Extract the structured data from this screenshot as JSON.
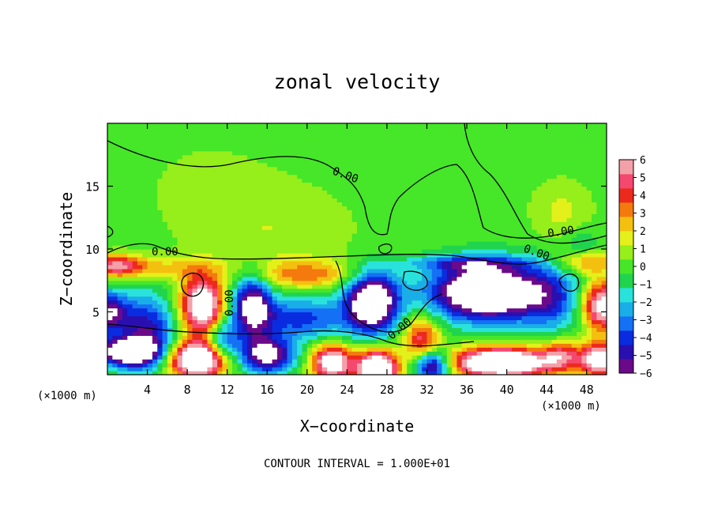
{
  "chart_data": {
    "type": "heatmap",
    "title": "zonal velocity",
    "xlabel": "X−coordinate",
    "ylabel": "Z−coordinate",
    "x_unit": "(×1000 m)",
    "z_unit": "(×1000 m)",
    "xlim": [
      0,
      50
    ],
    "ylim": [
      0,
      20
    ],
    "x_ticks": [
      "4",
      "8",
      "12",
      "16",
      "20",
      "24",
      "28",
      "32",
      "36",
      "40",
      "44",
      "48"
    ],
    "y_ticks": [
      "5",
      "10",
      "15"
    ],
    "colorbar": {
      "min": -6,
      "max": 6,
      "labels": [
        "6",
        "5",
        "4",
        "3",
        "2",
        "1",
        "0",
        "−1",
        "−2",
        "−3",
        "−4",
        "−5",
        "−6"
      ],
      "colors": [
        "#6a0a8a",
        "#2a0fb0",
        "#0a2ce0",
        "#1470f4",
        "#1aaee8",
        "#2ae2dc",
        "#20d44e",
        "#46e628",
        "#96ee1a",
        "#e4f01a",
        "#f4c010",
        "#f47a0e",
        "#ec2a1c",
        "#f4486e",
        "#f4a0a8"
      ]
    },
    "contour_labels": [
      "0.00",
      "0.00",
      "0.00",
      "0.00",
      "0.00",
      "0.00"
    ],
    "footnote": "CONTOUR INTERVAL = 1.000E+01",
    "blobs": [
      {
        "x": 0,
        "z": 5,
        "rx": 2,
        "rz": 1.6,
        "v": -6
      },
      {
        "x": 9.5,
        "z": 5.5,
        "rx": 2.2,
        "rz": 2.4,
        "v": 8
      },
      {
        "x": 14.5,
        "z": 5.5,
        "rx": 2.0,
        "rz": 2.5,
        "v": -7
      },
      {
        "x": 26.5,
        "z": 5.8,
        "rx": 2.6,
        "rz": 2.4,
        "v": -9
      },
      {
        "x": 38,
        "z": 6.6,
        "rx": 5.5,
        "rz": 2.2,
        "v": -10
      },
      {
        "x": 49.5,
        "z": 5.5,
        "rx": 2.0,
        "rz": 2.0,
        "v": 7
      },
      {
        "x": 4,
        "z": 3.5,
        "rx": 2.8,
        "rz": 2.8,
        "v": -5
      },
      {
        "x": 11.5,
        "z": 2.7,
        "rx": 1.6,
        "rz": 1.6,
        "v": -4
      },
      {
        "x": 19.5,
        "z": 4.5,
        "rx": 4.5,
        "rz": 1.7,
        "v": -4
      },
      {
        "x": 31.5,
        "z": 2.8,
        "rx": 1.8,
        "rz": 1.8,
        "v": 5
      },
      {
        "x": 44.5,
        "z": 6.0,
        "rx": 3.0,
        "rz": 2.8,
        "v": -3
      },
      {
        "x": 0.8,
        "z": 8.7,
        "rx": 2.8,
        "rz": 0.9,
        "v": 5
      },
      {
        "x": 6,
        "z": 8.5,
        "rx": 5,
        "rz": 0.9,
        "v": 2
      },
      {
        "x": 20,
        "z": 8.0,
        "rx": 5.5,
        "rz": 1.1,
        "v": 3
      },
      {
        "x": 36,
        "z": 8.9,
        "rx": 6,
        "rz": 0.6,
        "v": -3
      },
      {
        "x": 48,
        "z": 9.0,
        "rx": 3,
        "rz": 0.9,
        "v": 3
      },
      {
        "x": 2,
        "z": 1.8,
        "rx": 3.0,
        "rz": 1.1,
        "v": -8
      },
      {
        "x": 9,
        "z": 1.2,
        "rx": 2.8,
        "rz": 1.4,
        "v": 10
      },
      {
        "x": 16,
        "z": 1.6,
        "rx": 2.6,
        "rz": 1.4,
        "v": -7
      },
      {
        "x": 22.5,
        "z": 1.0,
        "rx": 2.0,
        "rz": 1.4,
        "v": 8
      },
      {
        "x": 27,
        "z": 0.5,
        "rx": 2.0,
        "rz": 1.5,
        "v": 10
      },
      {
        "x": 32.5,
        "z": 0.8,
        "rx": 1.8,
        "rz": 1.3,
        "v": -7
      },
      {
        "x": 39.5,
        "z": 1.0,
        "rx": 5.0,
        "rz": 1.2,
        "v": 10
      },
      {
        "x": 45.5,
        "z": 1.6,
        "rx": 2.0,
        "rz": 1.3,
        "v": 4
      },
      {
        "x": 49.5,
        "z": 1.2,
        "rx": 2.0,
        "rz": 1.3,
        "v": 8
      },
      {
        "x": 17,
        "z": 11.2,
        "rx": 8,
        "rz": 4,
        "v": 1.1
      },
      {
        "x": 45.5,
        "z": 13,
        "rx": 3,
        "rz": 2.5,
        "v": 1.4
      },
      {
        "x": 10,
        "z": 15,
        "rx": 7,
        "rz": 4,
        "v": 0.6
      },
      {
        "x": 47.5,
        "z": 10.5,
        "rx": 1.5,
        "rz": 1.2,
        "v": -1.5
      }
    ]
  }
}
